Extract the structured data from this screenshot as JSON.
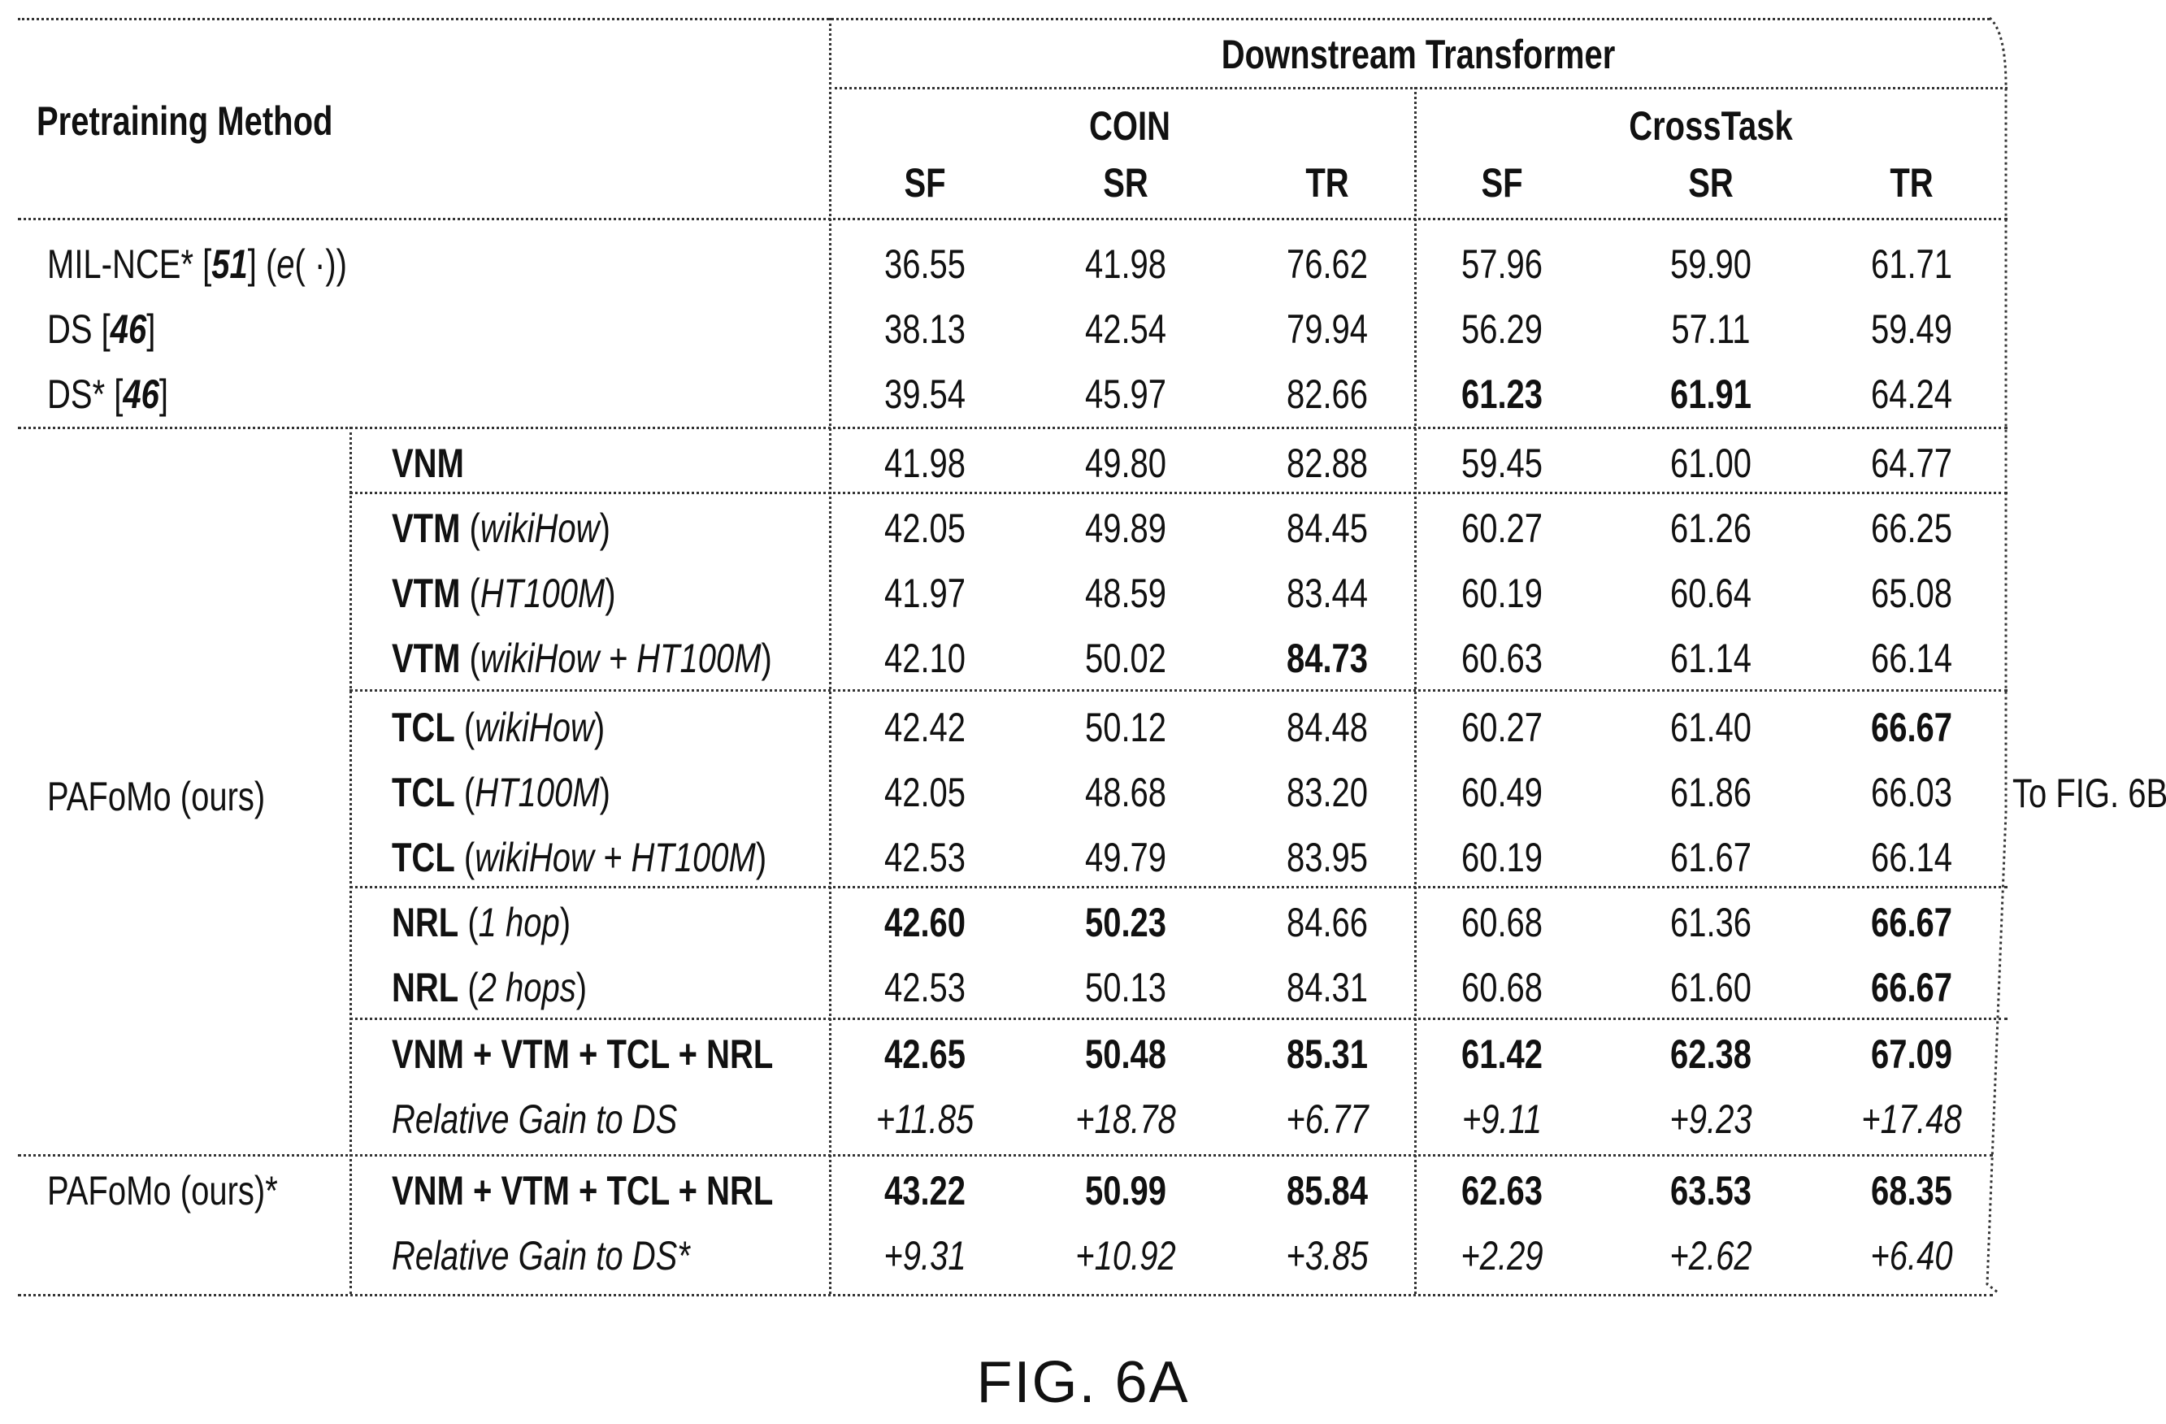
{
  "header": {
    "pretraining_method": "Pretraining Method",
    "downstream": "Downstream Transformer",
    "groups": [
      "COIN",
      "CrossTask"
    ],
    "metrics": [
      "SF",
      "SR",
      "TR",
      "SF",
      "SR",
      "TR"
    ]
  },
  "rows": [
    {
      "group": "",
      "method": [
        {
          "t": "MIL-NCE* ["
        },
        {
          "t": "51",
          "b": 1,
          "i": 1
        },
        {
          "t": "] ("
        },
        {
          "t": "e",
          "i": 1
        },
        {
          "t": "( ·))"
        }
      ],
      "values": [
        "36.55",
        "41.98",
        "76.62",
        "57.96",
        "59.90",
        "61.71"
      ],
      "bold": [
        0,
        0,
        0,
        0,
        0,
        0
      ],
      "italic": false
    },
    {
      "group": "",
      "method": [
        {
          "t": "DS ["
        },
        {
          "t": "46",
          "b": 1,
          "i": 1
        },
        {
          "t": "]"
        }
      ],
      "values": [
        "38.13",
        "42.54",
        "79.94",
        "56.29",
        "57.11",
        "59.49"
      ],
      "bold": [
        0,
        0,
        0,
        0,
        0,
        0
      ],
      "italic": false
    },
    {
      "group": "",
      "method": [
        {
          "t": "DS* ["
        },
        {
          "t": "46",
          "b": 1,
          "i": 1
        },
        {
          "t": "]"
        }
      ],
      "values": [
        "39.54",
        "45.97",
        "82.66",
        "61.23",
        "61.91",
        "64.24"
      ],
      "bold": [
        0,
        0,
        0,
        1,
        1,
        0
      ],
      "italic": false
    },
    {
      "group": "PAFoMo (ours)",
      "method": [
        {
          "t": "VNM",
          "b": 1
        }
      ],
      "values": [
        "41.98",
        "49.80",
        "82.88",
        "59.45",
        "61.00",
        "64.77"
      ],
      "bold": [
        0,
        0,
        0,
        0,
        0,
        0
      ],
      "italic": false
    },
    {
      "group": "PAFoMo (ours)",
      "method": [
        {
          "t": "VTM",
          "b": 1
        },
        {
          "t": " ("
        },
        {
          "t": "wikiHow",
          "i": 1
        },
        {
          "t": ")"
        }
      ],
      "values": [
        "42.05",
        "49.89",
        "84.45",
        "60.27",
        "61.26",
        "66.25"
      ],
      "bold": [
        0,
        0,
        0,
        0,
        0,
        0
      ],
      "italic": false
    },
    {
      "group": "PAFoMo (ours)",
      "method": [
        {
          "t": "VTM",
          "b": 1
        },
        {
          "t": " ("
        },
        {
          "t": "HT100M",
          "i": 1
        },
        {
          "t": ")"
        }
      ],
      "values": [
        "41.97",
        "48.59",
        "83.44",
        "60.19",
        "60.64",
        "65.08"
      ],
      "bold": [
        0,
        0,
        0,
        0,
        0,
        0
      ],
      "italic": false
    },
    {
      "group": "PAFoMo (ours)",
      "method": [
        {
          "t": "VTM",
          "b": 1
        },
        {
          "t": " ("
        },
        {
          "t": "wikiHow + HT100M",
          "i": 1
        },
        {
          "t": ")"
        }
      ],
      "values": [
        "42.10",
        "50.02",
        "84.73",
        "60.63",
        "61.14",
        "66.14"
      ],
      "bold": [
        0,
        0,
        1,
        0,
        0,
        0
      ],
      "italic": false
    },
    {
      "group": "PAFoMo (ours)",
      "method": [
        {
          "t": "TCL",
          "b": 1
        },
        {
          "t": " ("
        },
        {
          "t": "wikiHow",
          "i": 1
        },
        {
          "t": ")"
        }
      ],
      "values": [
        "42.42",
        "50.12",
        "84.48",
        "60.27",
        "61.40",
        "66.67"
      ],
      "bold": [
        0,
        0,
        0,
        0,
        0,
        1
      ],
      "italic": false
    },
    {
      "group": "PAFoMo (ours)",
      "method": [
        {
          "t": "TCL",
          "b": 1
        },
        {
          "t": " ("
        },
        {
          "t": "HT100M",
          "i": 1
        },
        {
          "t": ")"
        }
      ],
      "values": [
        "42.05",
        "48.68",
        "83.20",
        "60.49",
        "61.86",
        "66.03"
      ],
      "bold": [
        0,
        0,
        0,
        0,
        0,
        0
      ],
      "italic": false
    },
    {
      "group": "PAFoMo (ours)",
      "method": [
        {
          "t": "TCL",
          "b": 1
        },
        {
          "t": " ("
        },
        {
          "t": "wikiHow + HT100M",
          "i": 1
        },
        {
          "t": ")"
        }
      ],
      "values": [
        "42.53",
        "49.79",
        "83.95",
        "60.19",
        "61.67",
        "66.14"
      ],
      "bold": [
        0,
        0,
        0,
        0,
        0,
        0
      ],
      "italic": false
    },
    {
      "group": "PAFoMo (ours)",
      "method": [
        {
          "t": "NRL",
          "b": 1
        },
        {
          "t": " ("
        },
        {
          "t": "1 hop",
          "i": 1
        },
        {
          "t": ")"
        }
      ],
      "values": [
        "42.60",
        "50.23",
        "84.66",
        "60.68",
        "61.36",
        "66.67"
      ],
      "bold": [
        1,
        1,
        0,
        0,
        0,
        1
      ],
      "italic": false
    },
    {
      "group": "PAFoMo (ours)",
      "method": [
        {
          "t": "NRL",
          "b": 1
        },
        {
          "t": " ("
        },
        {
          "t": "2 hops",
          "i": 1
        },
        {
          "t": ")"
        }
      ],
      "values": [
        "42.53",
        "50.13",
        "84.31",
        "60.68",
        "61.60",
        "66.67"
      ],
      "bold": [
        0,
        0,
        0,
        0,
        0,
        1
      ],
      "italic": false
    },
    {
      "group": "PAFoMo (ours)",
      "method": [
        {
          "t": "VNM + VTM + TCL + NRL",
          "b": 1
        }
      ],
      "values": [
        "42.65",
        "50.48",
        "85.31",
        "61.42",
        "62.38",
        "67.09"
      ],
      "bold": [
        1,
        1,
        1,
        1,
        1,
        1
      ],
      "italic": false
    },
    {
      "group": "PAFoMo (ours)",
      "method": [
        {
          "t": "Relative Gain to DS",
          "i": 1
        }
      ],
      "values": [
        "+11.85",
        "+18.78",
        "+6.77",
        "+9.11",
        "+9.23",
        "+17.48"
      ],
      "bold": [
        0,
        0,
        0,
        0,
        0,
        0
      ],
      "italic": true
    },
    {
      "group": "PAFoMo (ours)*",
      "method": [
        {
          "t": "VNM + VTM + TCL + NRL",
          "b": 1
        }
      ],
      "values": [
        "43.22",
        "50.99",
        "85.84",
        "62.63",
        "63.53",
        "68.35"
      ],
      "bold": [
        1,
        1,
        1,
        1,
        1,
        1
      ],
      "italic": false
    },
    {
      "group": "PAFoMo (ours)*",
      "method": [
        {
          "t": "Relative Gain to DS*",
          "i": 1
        }
      ],
      "values": [
        "+9.31",
        "+10.92",
        "+3.85",
        "+2.29",
        "+2.62",
        "+6.40"
      ],
      "bold": [
        0,
        0,
        0,
        0,
        0,
        0
      ],
      "italic": true
    }
  ],
  "group_labels": [
    "PAFoMo (ours)",
    "PAFoMo (ours)*"
  ],
  "continuation": "To FIG. 6B",
  "caption": "FIG. 6A"
}
